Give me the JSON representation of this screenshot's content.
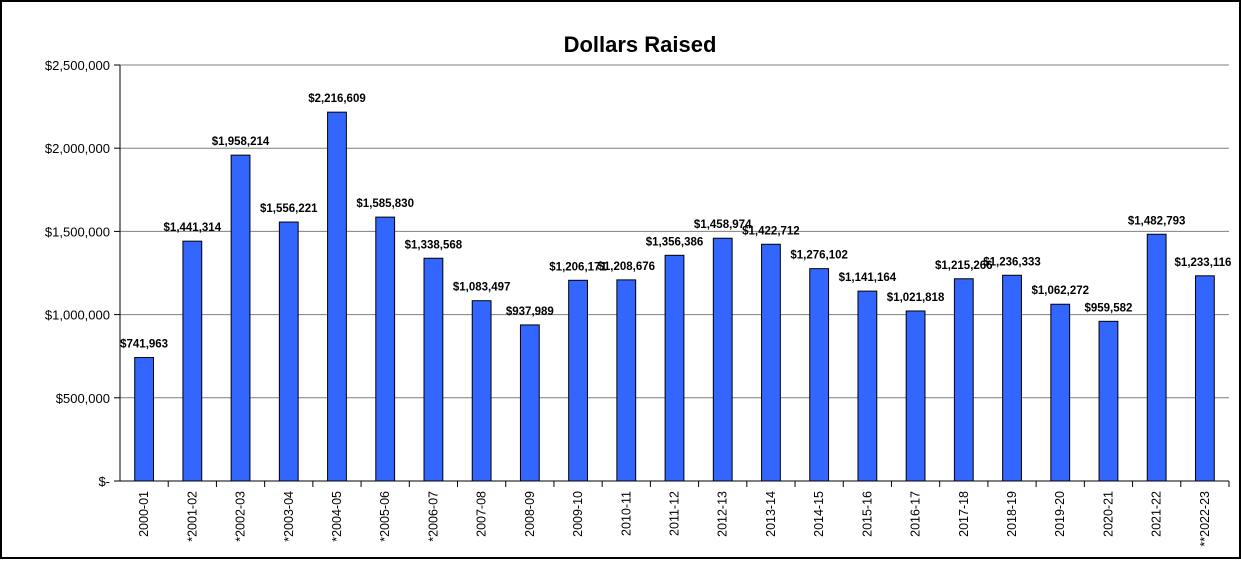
{
  "chart_data": {
    "type": "bar",
    "title": "Dollars Raised",
    "xlabel": "",
    "ylabel": "",
    "ylim": [
      0,
      2500000
    ],
    "yticks": [
      0,
      500000,
      1000000,
      1500000,
      2000000,
      2500000
    ],
    "ytick_labels": [
      "$-",
      "$500,000",
      "$1,000,000",
      "$1,500,000",
      "$2,000,000",
      "$2,500,000"
    ],
    "grid": true,
    "legend": "none",
    "bar_color": "#3366ff",
    "categories": [
      "2000-01",
      "*2001-02",
      "*2002-03",
      "*2003-04",
      "*2004-05",
      "*2005-06",
      "*2006-07",
      "2007-08",
      "2008-09",
      "2009-10",
      "2010-11",
      "2011-12",
      "2012-13",
      "2013-14",
      "2014-15",
      "2015-16",
      "2016-17",
      "2017-18",
      "2018-19",
      "2019-20",
      "2020-21",
      "2021-22",
      "**2022-23"
    ],
    "values": [
      741963,
      1441314,
      1958214,
      1556221,
      2216609,
      1585830,
      1338568,
      1083497,
      937989,
      1206171,
      1208676,
      1356386,
      1458974,
      1422712,
      1276102,
      1141164,
      1021818,
      1215266,
      1236333,
      1062272,
      959582,
      1482793,
      1233116
    ],
    "data_labels": [
      "$741,963",
      "$1,441,314",
      "$1,958,214",
      "$1,556,221",
      "$2,216,609",
      "$1,585,830",
      "$1,338,568",
      "$1,083,497",
      "$937,989",
      "$1,206,171",
      "$1,208,676",
      "$1,356,386",
      "$1,458,974",
      "$1,422,712",
      "$1,276,102",
      "$1,141,164",
      "$1,021,818",
      "$1,215,266",
      "$1,236,333",
      "$1,062,272",
      "$959,582",
      "$1,482,793",
      "$1,233,116"
    ]
  }
}
